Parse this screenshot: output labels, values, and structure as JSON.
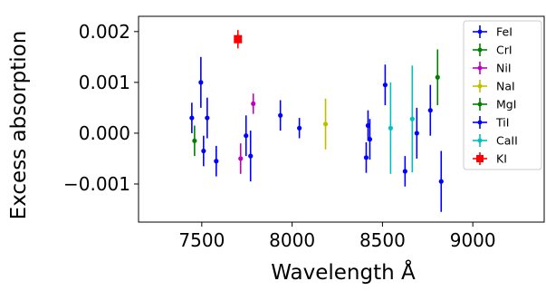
{
  "chart_data": {
    "type": "scatter",
    "xlabel": "Wavelength Å",
    "ylabel": "Excess absorption",
    "xlim": [
      7150,
      9400
    ],
    "ylim": [
      -0.00175,
      0.0023
    ],
    "x_ticks": [
      7500,
      8000,
      8500,
      9000
    ],
    "x_tick_labels": [
      "7500",
      "8000",
      "8500",
      "9000"
    ],
    "y_ticks": [
      -0.001,
      0.0,
      0.001,
      0.002
    ],
    "y_tick_labels": [
      "−0.001",
      "0.000",
      "0.001",
      "0.002"
    ],
    "grid": false,
    "legend_position": "top-right",
    "series": [
      {
        "name": "FeI",
        "color": "#0000ff",
        "marker": "circle",
        "points": [
          {
            "x": 7445,
            "y": 0.0003,
            "err": 0.0003
          },
          {
            "x": 7495,
            "y": 0.001,
            "err": 0.0005
          },
          {
            "x": 7510,
            "y": -0.00035,
            "err": 0.0003
          },
          {
            "x": 7530,
            "y": 0.0003,
            "err": 0.0004
          },
          {
            "x": 7580,
            "y": -0.00055,
            "err": 0.0003
          },
          {
            "x": 7745,
            "y": -5e-05,
            "err": 0.0004
          },
          {
            "x": 7770,
            "y": -0.00045,
            "err": 0.0005
          },
          {
            "x": 7935,
            "y": 0.00035,
            "err": 0.0003
          },
          {
            "x": 8040,
            "y": 0.0001,
            "err": 0.0002
          },
          {
            "x": 8410,
            "y": -0.00048,
            "err": 0.0003
          },
          {
            "x": 8420,
            "y": 0.00015,
            "err": 0.0003
          },
          {
            "x": 8430,
            "y": -0.00012,
            "err": 0.0004
          },
          {
            "x": 8515,
            "y": 0.00095,
            "err": 0.0004
          },
          {
            "x": 8625,
            "y": -0.00075,
            "err": 0.0003
          },
          {
            "x": 8690,
            "y": 0.0,
            "err": 0.0005
          },
          {
            "x": 8765,
            "y": 0.00045,
            "err": 0.0005
          },
          {
            "x": 8825,
            "y": -0.00095,
            "err": 0.0006
          }
        ]
      },
      {
        "name": "CrI",
        "color": "#008000",
        "marker": "circle",
        "points": [
          {
            "x": 7460,
            "y": -0.00015,
            "err": 0.0003
          }
        ]
      },
      {
        "name": "NiI",
        "color": "#bf00bf",
        "marker": "circle",
        "points": [
          {
            "x": 7715,
            "y": -0.0005,
            "err": 0.0003
          },
          {
            "x": 7785,
            "y": 0.00058,
            "err": 0.0002
          }
        ]
      },
      {
        "name": "NaI",
        "color": "#bfbf00",
        "marker": "circle",
        "points": [
          {
            "x": 8185,
            "y": 0.00018,
            "err": 0.0005
          }
        ]
      },
      {
        "name": "MgI",
        "color": "#008000",
        "marker": "circle",
        "points": [
          {
            "x": 8805,
            "y": 0.0011,
            "err": 0.00055
          }
        ]
      },
      {
        "name": "TiI",
        "color": "#0000ff",
        "marker": "circle",
        "points": []
      },
      {
        "name": "CaII",
        "color": "#00bfbf",
        "marker": "circle",
        "points": [
          {
            "x": 8545,
            "y": 0.0001,
            "err": 0.0009
          },
          {
            "x": 8665,
            "y": 0.00028,
            "err": 0.00105
          }
        ]
      },
      {
        "name": "KI",
        "color": "#ff0000",
        "marker": "square",
        "points": [
          {
            "x": 7700,
            "y": 0.00185,
            "err": 0.00018
          }
        ]
      }
    ]
  }
}
